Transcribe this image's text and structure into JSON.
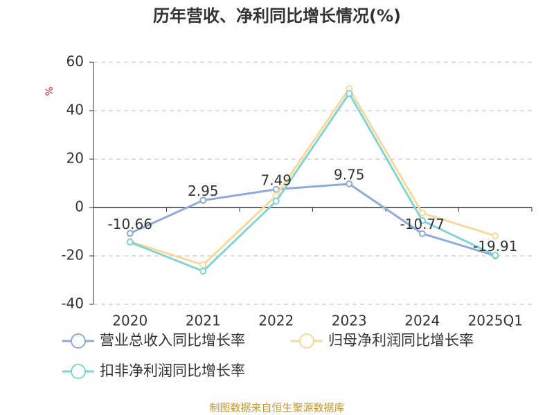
{
  "chart_data": {
    "type": "line",
    "title": "历年营收、净利同比增长情况(%)",
    "y_label": "%",
    "source": "制图数据来自恒生聚源数据库",
    "categories": [
      "2020",
      "2021",
      "2022",
      "2023",
      "2024",
      "2025Q1"
    ],
    "series": [
      {
        "name": "营业总收入同比增长率",
        "color": "#8eaad8",
        "values": [
          -10.66,
          2.95,
          7.49,
          9.75,
          -10.77,
          -19.91
        ],
        "show_labels": true
      },
      {
        "name": "归母净利润同比增长率",
        "color": "#f9d99a",
        "values": [
          -14,
          -23.7,
          4.9,
          49.1,
          -2.3,
          -11.7
        ]
      },
      {
        "name": "扣非净利润同比增长率",
        "color": "#80d4d4",
        "values": [
          -14.3,
          -26.3,
          2.6,
          47.1,
          -5.4,
          -19.7
        ]
      }
    ],
    "ylim": [
      -40,
      60
    ],
    "yticks": [
      -40,
      -20,
      0,
      20,
      40,
      60
    ],
    "grid": true
  }
}
